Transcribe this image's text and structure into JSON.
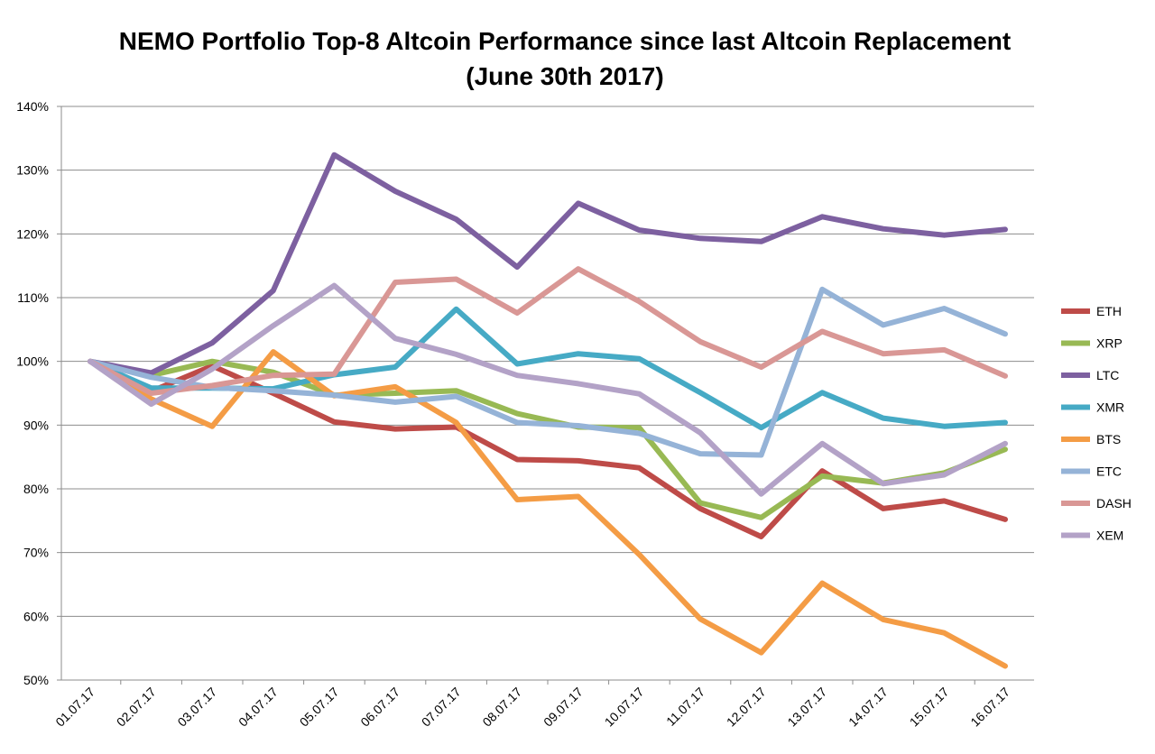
{
  "chart_data": {
    "type": "line",
    "title": "NEMO Portfolio Top-8 Altcoin Performance since last Altcoin Replacement",
    "subtitle": "(June 30th 2017)",
    "xlabel": "",
    "ylabel": "",
    "ylim": [
      50,
      140
    ],
    "y_ticks": [
      "50%",
      "60%",
      "70%",
      "80%",
      "90%",
      "100%",
      "110%",
      "120%",
      "130%",
      "140%"
    ],
    "grid": true,
    "legend_position": "right",
    "categories": [
      "01.07.17",
      "02.07.17",
      "03.07.17",
      "04.07.17",
      "05.07.17",
      "06.07.17",
      "07.07.17",
      "08.07.17",
      "09.07.17",
      "10.07.17",
      "11.07.17",
      "12.07.17",
      "13.07.17",
      "14.07.17",
      "15.07.17",
      "16.07.17"
    ],
    "series": [
      {
        "name": "ETH",
        "color": "#be4b48",
        "values": [
          100,
          95.3,
          99.3,
          95,
          90.5,
          89.4,
          89.7,
          84.6,
          84.4,
          83.3,
          76.9,
          72.5,
          82.8,
          76.9,
          78.1,
          75.2
        ]
      },
      {
        "name": "XRP",
        "color": "#98b954",
        "values": [
          100,
          97.8,
          100,
          98.3,
          94.7,
          95,
          95.4,
          91.8,
          89.7,
          89.6,
          77.8,
          75.5,
          82,
          80.9,
          82.5,
          86.2
        ]
      },
      {
        "name": "LTC",
        "color": "#7d60a0",
        "values": [
          100,
          98.2,
          102.9,
          111.1,
          132.4,
          126.7,
          122.3,
          114.8,
          124.8,
          120.6,
          119.3,
          118.8,
          122.7,
          120.8,
          119.8,
          120.7
        ]
      },
      {
        "name": "XMR",
        "color": "#46aac5",
        "values": [
          100,
          95.8,
          95.8,
          95.7,
          97.9,
          99.1,
          108.2,
          99.6,
          101.2,
          100.4,
          95.1,
          89.6,
          95.1,
          91.1,
          89.8,
          90.4
        ]
      },
      {
        "name": "BTS",
        "color": "#f49c45",
        "values": [
          100,
          94.1,
          89.8,
          101.5,
          94.6,
          96,
          90.4,
          78.3,
          78.8,
          69.7,
          59.6,
          54.3,
          65.2,
          59.5,
          57.4,
          52.2
        ]
      },
      {
        "name": "ETC",
        "color": "#95b3d7",
        "values": [
          100,
          97.5,
          95.9,
          95.4,
          94.7,
          93.6,
          94.5,
          90.4,
          89.9,
          88.7,
          85.5,
          85.3,
          111.3,
          105.7,
          108.3,
          104.3
        ]
      },
      {
        "name": "DASH",
        "color": "#d99795",
        "values": [
          100,
          95,
          96.2,
          97.8,
          98,
          112.4,
          112.9,
          107.6,
          114.5,
          109.4,
          103.1,
          99.1,
          104.7,
          101.2,
          101.8,
          97.7
        ]
      },
      {
        "name": "XEM",
        "color": "#b3a2c7",
        "values": [
          100,
          93.3,
          98.8,
          105.6,
          111.9,
          103.6,
          101.1,
          97.8,
          96.5,
          94.9,
          88.8,
          79.2,
          87.1,
          80.8,
          82.2,
          87.1
        ]
      }
    ]
  }
}
